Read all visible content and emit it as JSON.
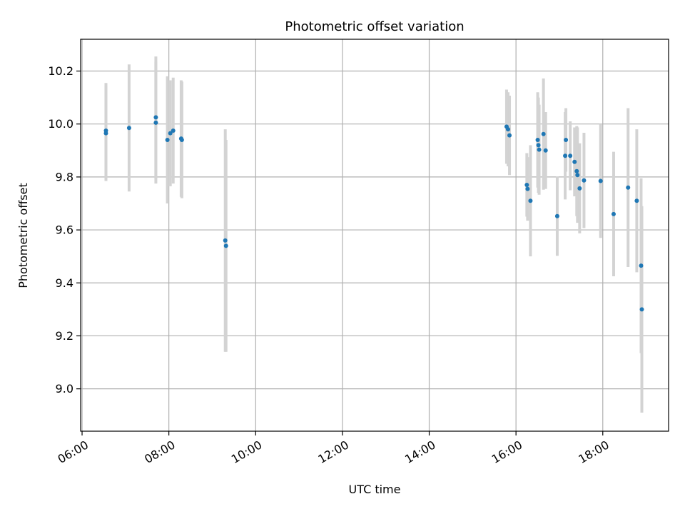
{
  "chart_data": {
    "type": "scatter",
    "title": "Photometric offset variation",
    "xlabel": "UTC time",
    "ylabel": "Photometric offset",
    "x_axis_type": "time",
    "xlim": [
      "05:58",
      "19:31"
    ],
    "ylim": [
      8.84,
      10.32
    ],
    "x_ticks": [
      "06:00",
      "08:00",
      "10:00",
      "12:00",
      "14:00",
      "16:00",
      "18:00"
    ],
    "y_ticks": [
      9.0,
      9.2,
      9.4,
      9.6,
      9.8,
      10.0,
      10.2
    ],
    "y_tick_labels": [
      "9.0",
      "9.2",
      "9.4",
      "9.6",
      "9.8",
      "10.0",
      "10.2"
    ],
    "grid": true,
    "point_color": "#1f77b4",
    "errorbar_color": "#d3d3d3",
    "series": [
      {
        "points": [
          {
            "time": "06:33",
            "y": 9.975,
            "err": 0.18
          },
          {
            "time": "06:33",
            "y": 9.965,
            "err": 0.18
          },
          {
            "time": "07:05",
            "y": 9.985,
            "err": 0.24
          },
          {
            "time": "07:42",
            "y": 10.025,
            "err": 0.23
          },
          {
            "time": "07:42",
            "y": 10.005,
            "err": 0.23
          },
          {
            "time": "07:58",
            "y": 9.94,
            "err": 0.24
          },
          {
            "time": "08:02",
            "y": 9.965,
            "err": 0.2
          },
          {
            "time": "08:06",
            "y": 9.975,
            "err": 0.2
          },
          {
            "time": "08:17",
            "y": 9.945,
            "err": 0.22
          },
          {
            "time": "08:18",
            "y": 9.94,
            "err": 0.22
          },
          {
            "time": "09:18",
            "y": 9.56,
            "err": 0.42
          },
          {
            "time": "09:19",
            "y": 9.54,
            "err": 0.4
          },
          {
            "time": "15:47",
            "y": 9.99,
            "err": 0.14
          },
          {
            "time": "15:49",
            "y": 9.98,
            "err": 0.14
          },
          {
            "time": "15:51",
            "y": 9.957,
            "err": 0.15
          },
          {
            "time": "16:15",
            "y": 9.77,
            "err": 0.12
          },
          {
            "time": "16:16",
            "y": 9.755,
            "err": 0.12
          },
          {
            "time": "16:20",
            "y": 9.71,
            "err": 0.21
          },
          {
            "time": "16:30",
            "y": 9.94,
            "err": 0.18
          },
          {
            "time": "16:31",
            "y": 9.92,
            "err": 0.18
          },
          {
            "time": "16:32",
            "y": 9.903,
            "err": 0.17
          },
          {
            "time": "16:38",
            "y": 9.962,
            "err": 0.21
          },
          {
            "time": "16:41",
            "y": 9.9,
            "err": 0.145
          },
          {
            "time": "16:57",
            "y": 9.652,
            "err": 0.15
          },
          {
            "time": "17:08",
            "y": 9.88,
            "err": 0.165
          },
          {
            "time": "17:09",
            "y": 9.94,
            "err": 0.12
          },
          {
            "time": "17:15",
            "y": 9.88,
            "err": 0.13
          },
          {
            "time": "17:21",
            "y": 9.857,
            "err": 0.13
          },
          {
            "time": "17:24",
            "y": 9.822,
            "err": 0.17
          },
          {
            "time": "17:25",
            "y": 9.807,
            "err": 0.18
          },
          {
            "time": "17:28",
            "y": 9.757,
            "err": 0.17
          },
          {
            "time": "17:34",
            "y": 9.787,
            "err": 0.18
          },
          {
            "time": "17:57",
            "y": 9.785,
            "err": 0.215
          },
          {
            "time": "18:15",
            "y": 9.66,
            "err": 0.235
          },
          {
            "time": "18:35",
            "y": 9.76,
            "err": 0.3
          },
          {
            "time": "18:47",
            "y": 9.71,
            "err": 0.27
          },
          {
            "time": "18:53",
            "y": 9.465,
            "err": 0.33
          },
          {
            "time": "18:54",
            "y": 9.3,
            "err": 0.39
          }
        ]
      }
    ]
  }
}
